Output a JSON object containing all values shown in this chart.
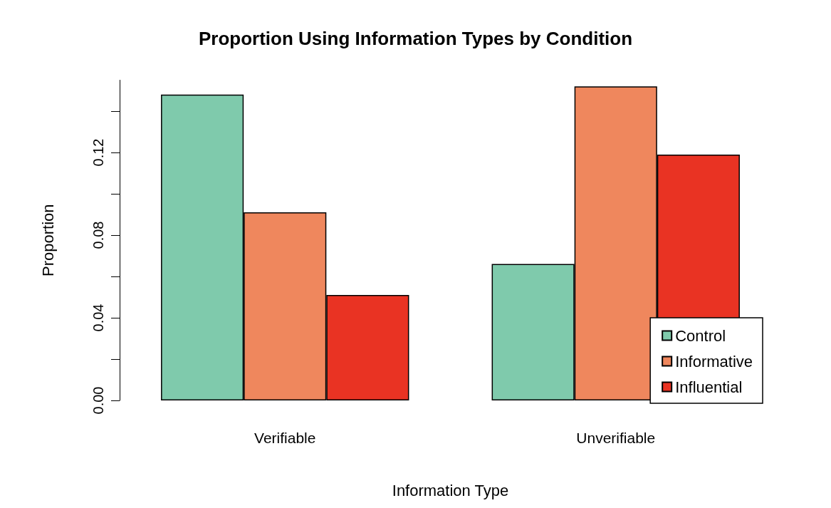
{
  "chart_data": {
    "type": "bar",
    "title": "Proportion Using Information Types by Condition",
    "xlabel": "Information Type",
    "ylabel": "Proportion",
    "categories": [
      "Verifiable",
      "Unverifiable"
    ],
    "series": [
      {
        "name": "Control",
        "color": "#7fcaac",
        "values": [
          0.148,
          0.066
        ]
      },
      {
        "name": "Informative",
        "color": "#ef875d",
        "values": [
          0.091,
          0.152
        ]
      },
      {
        "name": "Influential",
        "color": "#e93323",
        "values": [
          0.051,
          0.119
        ]
      }
    ],
    "ylim": [
      0,
      0.155
    ],
    "yticks": [
      {
        "value": 0,
        "label": "0.00"
      },
      {
        "value": 0.02,
        "label": null
      },
      {
        "value": 0.04,
        "label": "0.04"
      },
      {
        "value": 0.06,
        "label": null
      },
      {
        "value": 0.08,
        "label": "0.08"
      },
      {
        "value": 0.1,
        "label": null
      },
      {
        "value": 0.12,
        "label": "0.12"
      },
      {
        "value": 0.14,
        "label": null
      }
    ],
    "grid": false,
    "legend": "bottom right"
  }
}
